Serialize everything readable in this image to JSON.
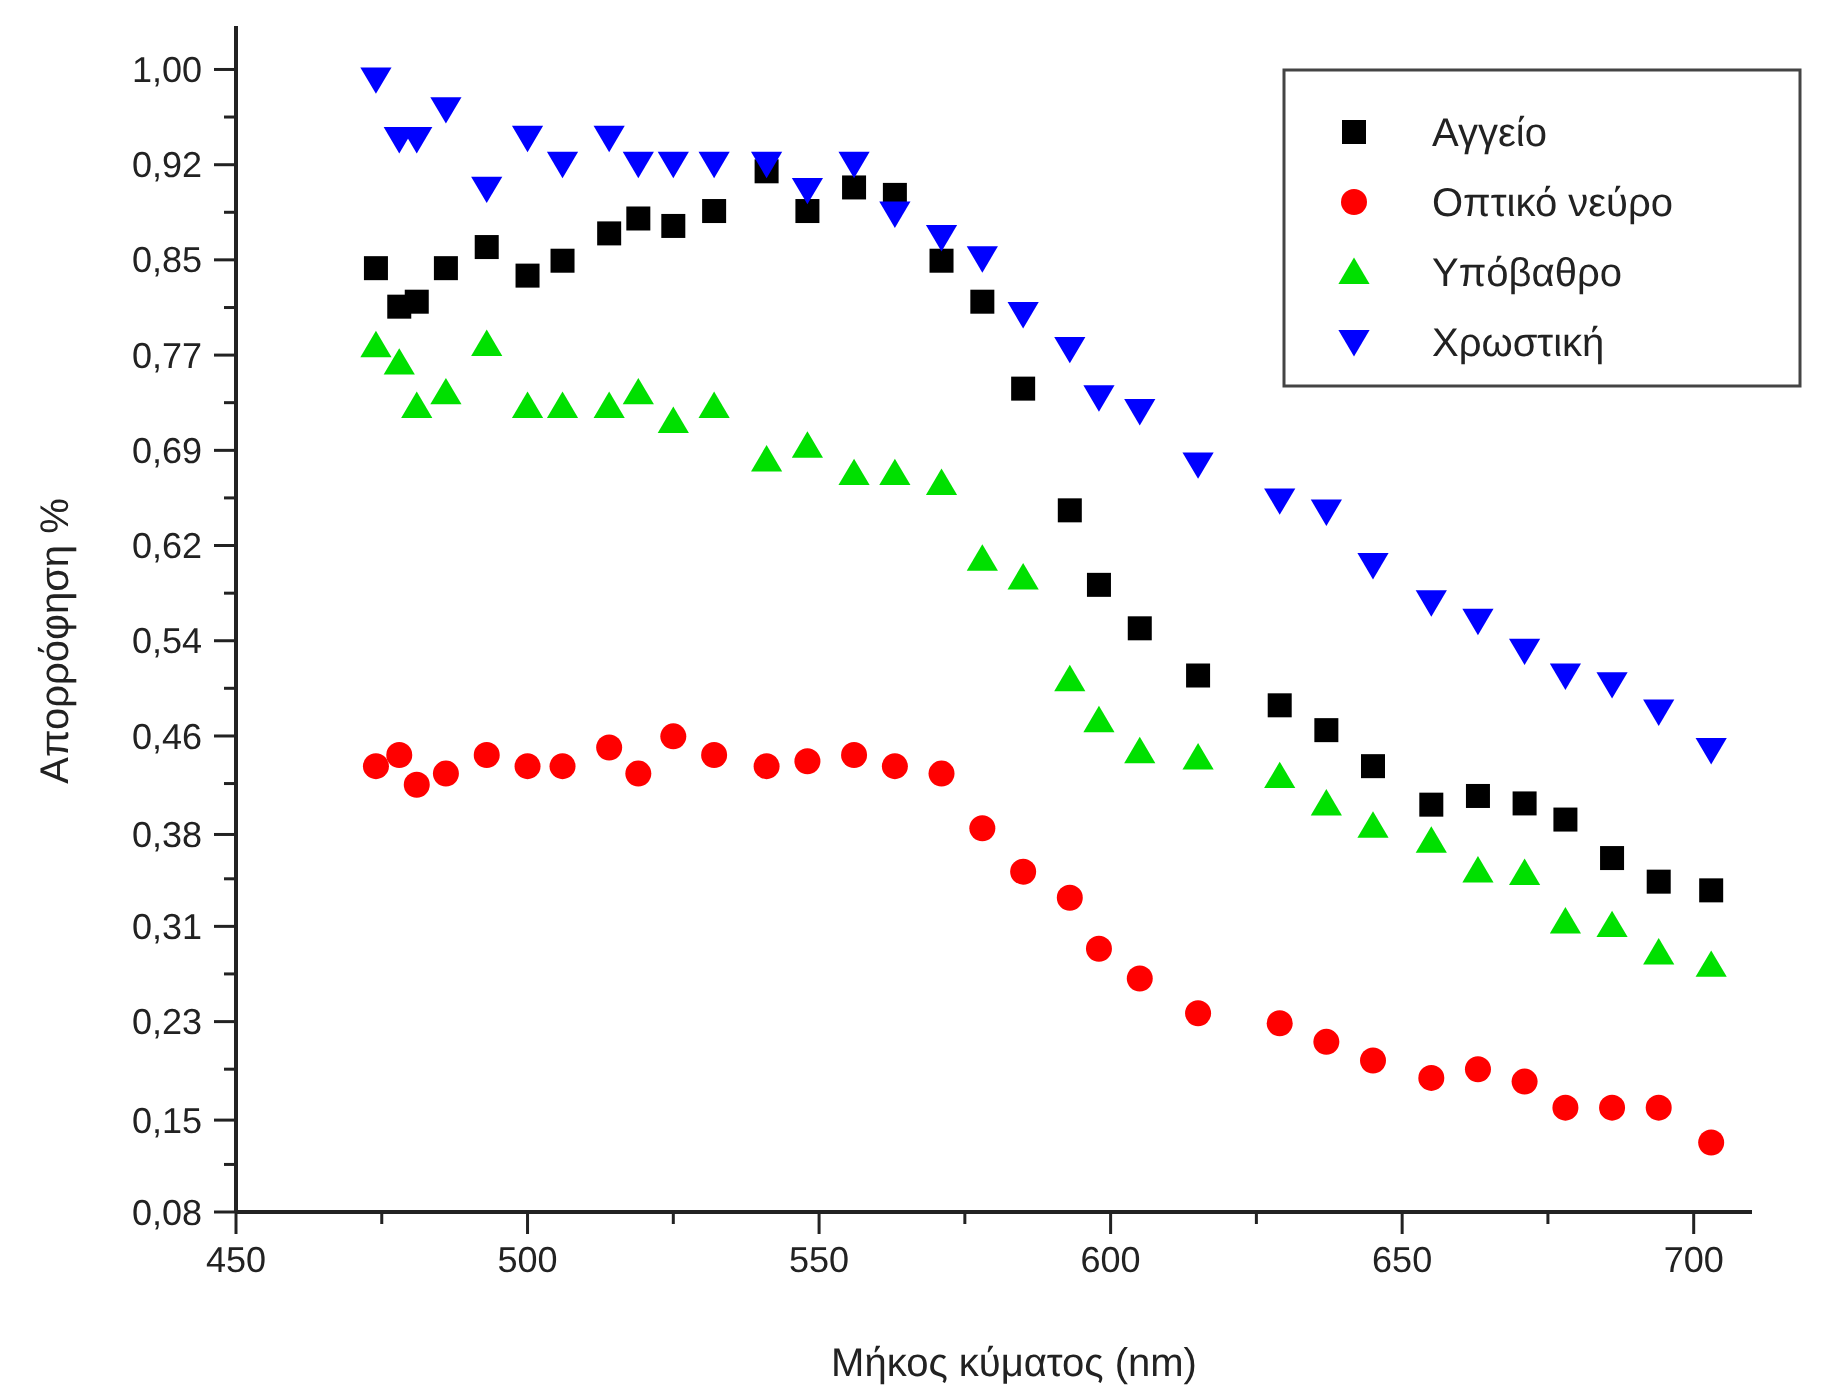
{
  "chart_data": {
    "type": "scatter",
    "xlabel": "Μήκος κύματος (nm)",
    "ylabel": "Απορρόφηση %",
    "x": [
      474,
      478,
      481,
      486,
      493,
      500,
      506,
      514,
      519,
      525,
      532,
      541,
      548,
      556,
      563,
      571,
      578,
      585,
      593,
      598,
      605,
      615,
      629,
      637,
      645,
      655,
      663,
      671,
      678,
      686,
      694,
      703
    ],
    "series": [
      {
        "name": "Αγγείο",
        "color": "#000000",
        "marker": "square",
        "values": [
          0.84,
          0.809,
          0.813,
          0.84,
          0.857,
          0.834,
          0.846,
          0.868,
          0.88,
          0.874,
          0.886,
          0.918,
          0.886,
          0.905,
          0.899,
          0.846,
          0.813,
          0.743,
          0.645,
          0.585,
          0.55,
          0.512,
          0.488,
          0.468,
          0.439,
          0.408,
          0.415,
          0.409,
          0.396,
          0.365,
          0.346,
          0.339
        ]
      },
      {
        "name": "Οπτικό νεύρο",
        "color": "#ff0000",
        "marker": "circle",
        "values": [
          0.439,
          0.448,
          0.424,
          0.433,
          0.448,
          0.439,
          0.439,
          0.454,
          0.433,
          0.463,
          0.448,
          0.439,
          0.443,
          0.448,
          0.439,
          0.433,
          0.389,
          0.354,
          0.333,
          0.292,
          0.268,
          0.24,
          0.232,
          0.217,
          0.202,
          0.188,
          0.195,
          0.185,
          0.164,
          0.164,
          0.164,
          0.136
        ]
      },
      {
        "name": "Υπόβαθρο",
        "color": "#00e000",
        "marker": "triangle",
        "values": [
          0.778,
          0.764,
          0.729,
          0.74,
          0.779,
          0.729,
          0.729,
          0.729,
          0.74,
          0.717,
          0.729,
          0.686,
          0.697,
          0.675,
          0.675,
          0.667,
          0.606,
          0.591,
          0.509,
          0.476,
          0.451,
          0.446,
          0.431,
          0.409,
          0.391,
          0.379,
          0.355,
          0.353,
          0.314,
          0.311,
          0.289,
          0.279
        ]
      },
      {
        "name": "Χρωστική",
        "color": "#0000ff",
        "marker": "triangle-down",
        "values": [
          0.992,
          0.944,
          0.944,
          0.968,
          0.904,
          0.945,
          0.924,
          0.945,
          0.924,
          0.924,
          0.924,
          0.924,
          0.903,
          0.924,
          0.884,
          0.865,
          0.848,
          0.803,
          0.775,
          0.736,
          0.725,
          0.682,
          0.653,
          0.644,
          0.601,
          0.571,
          0.556,
          0.532,
          0.512,
          0.505,
          0.483,
          0.452
        ]
      }
    ],
    "xlim": [
      450,
      710
    ],
    "xticks": [
      450,
      {
        "value": 475,
        "label": null
      },
      500,
      {
        "value": 525,
        "label": null
      },
      550,
      {
        "value": 575,
        "label": null
      },
      600,
      {
        "value": 625,
        "label": null
      },
      650,
      {
        "value": 675,
        "label": null
      },
      700
    ],
    "ylim": [
      0.08,
      1.035
    ],
    "yticks": [
      {
        "value": 0.08,
        "label": "0,08"
      },
      {
        "value": 0.1183,
        "label": null
      },
      {
        "value": 0.154,
        "label": "0,15"
      },
      {
        "value": 0.195,
        "label": null
      },
      {
        "value": 0.2333,
        "label": "0,23"
      },
      {
        "value": 0.2717,
        "label": null
      },
      {
        "value": 0.31,
        "label": "0,31"
      },
      {
        "value": 0.3483,
        "label": null
      },
      {
        "value": 0.384,
        "label": "0,38"
      },
      {
        "value": 0.425,
        "label": null
      },
      {
        "value": 0.4633,
        "label": "0,46"
      },
      {
        "value": 0.5017,
        "label": null
      },
      {
        "value": 0.54,
        "label": "0,54"
      },
      {
        "value": 0.5783,
        "label": null
      },
      {
        "value": 0.6167,
        "label": "0,62"
      },
      {
        "value": 0.655,
        "label": null
      },
      {
        "value": 0.6933,
        "label": "0,69"
      },
      {
        "value": 0.7317,
        "label": null
      },
      {
        "value": 0.77,
        "label": "0,77"
      },
      {
        "value": 0.8083,
        "label": null
      },
      {
        "value": 0.8467,
        "label": "0,85"
      },
      {
        "value": 0.885,
        "label": null
      },
      {
        "value": 0.9233,
        "label": "0,92"
      },
      {
        "value": 0.9617,
        "label": null
      },
      {
        "value": 1.0,
        "label": "1,00"
      }
    ],
    "grid": false,
    "legend": "top right"
  }
}
